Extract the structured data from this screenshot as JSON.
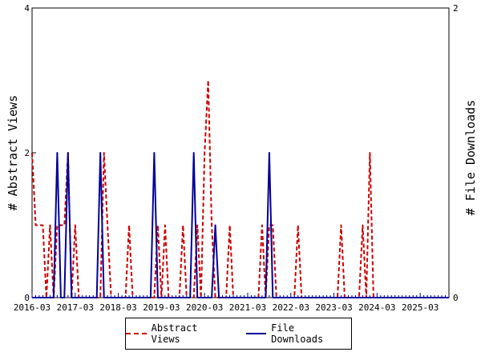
{
  "chart_data": {
    "type": "line",
    "ylabel_left": "# Abstract Views",
    "ylabel_right": "# File Downloads",
    "x_tick_labels": [
      "2016-03",
      "2017-03",
      "2018-03",
      "2019-03",
      "2020-03",
      "2021-03",
      "2022-03",
      "2023-03",
      "2024-03",
      "2025-03"
    ],
    "y_left_ticks": [
      "0",
      "2",
      "4"
    ],
    "y_right_ticks": [
      "0",
      "2"
    ],
    "ylim_left": [
      0,
      4
    ],
    "ylim_right": [
      0,
      2
    ],
    "x_range_months": [
      0,
      116
    ],
    "colors": {
      "views": "#cc0000",
      "downloads": "#000099"
    },
    "series": [
      {
        "name": "Abstract Views",
        "axis": "left",
        "style": "dashed",
        "points": [
          [
            0,
            2
          ],
          [
            1,
            1
          ],
          [
            2,
            1
          ],
          [
            3,
            1
          ],
          [
            4,
            0
          ],
          [
            5,
            1
          ],
          [
            6,
            0
          ],
          [
            7,
            1
          ],
          [
            8,
            1
          ],
          [
            9,
            1
          ],
          [
            10,
            2
          ],
          [
            11,
            0
          ],
          [
            12,
            1
          ],
          [
            13,
            0
          ],
          [
            19,
            0
          ],
          [
            20,
            2
          ],
          [
            21,
            1
          ],
          [
            22,
            0
          ],
          [
            26,
            0
          ],
          [
            27,
            1
          ],
          [
            28,
            0
          ],
          [
            34,
            0
          ],
          [
            35,
            1
          ],
          [
            36,
            0
          ],
          [
            37,
            1
          ],
          [
            38,
            0
          ],
          [
            41,
            0
          ],
          [
            42,
            1
          ],
          [
            43,
            0
          ],
          [
            45,
            0
          ],
          [
            46,
            1
          ],
          [
            47,
            0
          ],
          [
            48,
            2
          ],
          [
            49,
            3
          ],
          [
            50,
            1
          ],
          [
            51,
            0
          ],
          [
            54,
            0
          ],
          [
            55,
            1
          ],
          [
            56,
            0
          ],
          [
            63,
            0
          ],
          [
            64,
            1
          ],
          [
            65,
            0
          ],
          [
            66,
            1
          ],
          [
            67,
            1
          ],
          [
            68,
            0
          ],
          [
            73,
            0
          ],
          [
            74,
            1
          ],
          [
            75,
            0
          ],
          [
            85,
            0
          ],
          [
            86,
            1
          ],
          [
            87,
            0
          ],
          [
            91,
            0
          ],
          [
            92,
            1
          ],
          [
            93,
            0
          ],
          [
            94,
            2
          ],
          [
            95,
            0
          ],
          [
            116,
            0
          ]
        ]
      },
      {
        "name": "File Downloads",
        "axis": "right",
        "style": "solid",
        "points": [
          [
            0,
            0
          ],
          [
            6,
            0
          ],
          [
            7,
            1
          ],
          [
            8,
            0
          ],
          [
            9,
            0
          ],
          [
            10,
            1
          ],
          [
            11,
            0
          ],
          [
            18,
            0
          ],
          [
            19,
            1
          ],
          [
            20,
            0
          ],
          [
            33,
            0
          ],
          [
            34,
            1
          ],
          [
            35,
            0
          ],
          [
            44,
            0
          ],
          [
            45,
            1
          ],
          [
            46,
            0
          ],
          [
            50,
            0
          ],
          [
            51,
            0.5
          ],
          [
            52,
            0
          ],
          [
            65,
            0
          ],
          [
            66,
            1
          ],
          [
            67,
            0
          ],
          [
            116,
            0
          ]
        ]
      }
    ],
    "legend": {
      "position": "bottom",
      "entries": [
        "Abstract Views",
        "File Downloads"
      ]
    }
  }
}
